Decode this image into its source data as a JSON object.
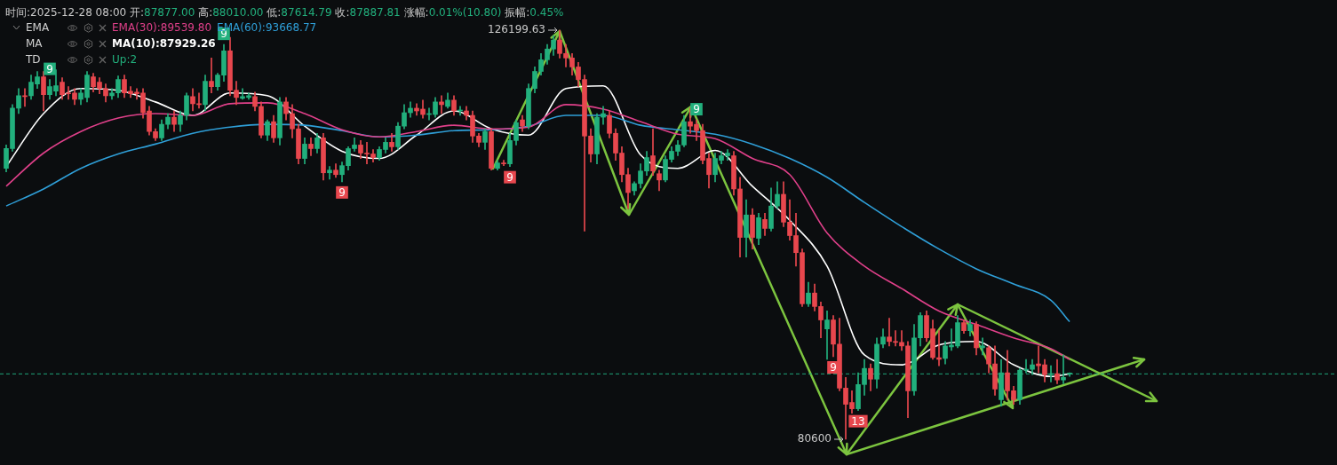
{
  "chart_data": {
    "type": "candlestick",
    "title": "时间:2025-12-28 08:00 开:87877.00 高:88010.00 低:87614.79 收:87887.81 涨幅:0.01%(10.80) 振幅:0.45%",
    "categories": [
      null,
      null,
      null,
      null,
      null,
      null,
      null,
      null,
      null,
      null,
      null,
      null,
      null,
      null,
      null,
      null,
      null,
      null,
      null,
      null,
      null,
      null,
      null,
      null,
      null,
      null,
      null,
      null,
      null,
      null,
      null,
      null,
      null,
      null,
      null,
      null,
      null,
      null,
      null,
      null,
      null,
      null,
      null,
      null,
      null,
      null,
      null,
      null,
      null,
      null,
      null,
      null,
      null,
      null,
      null,
      null,
      null,
      null,
      null,
      null,
      null,
      null,
      null,
      null,
      null,
      null,
      null,
      null,
      null,
      null,
      null,
      null,
      null,
      null,
      null,
      null,
      null,
      null,
      null,
      null,
      null,
      null,
      null,
      null,
      null,
      null,
      null,
      null,
      null,
      null,
      null,
      null,
      null,
      null,
      null,
      null,
      null,
      null,
      null,
      null,
      null,
      null,
      null,
      null,
      null,
      null,
      null,
      null,
      null,
      null,
      null,
      null,
      null,
      null,
      null,
      null,
      null,
      null,
      null,
      null,
      null,
      null,
      null,
      null,
      null,
      null,
      null,
      null,
      null,
      null,
      null,
      null,
      null,
      null,
      null,
      null,
      null,
      null,
      null,
      null,
      null,
      null,
      null,
      null,
      null,
      null,
      null,
      null,
      null,
      null,
      null,
      null,
      null,
      null,
      null,
      null,
      null,
      null,
      null,
      null,
      null,
      null,
      null,
      null,
      null,
      null,
      null,
      null,
      null,
      null,
      null,
      null
    ],
    "ohlc": [
      [
        110800,
        113400,
        110400,
        113000
      ],
      [
        113000,
        117900,
        112700,
        117500
      ],
      [
        117500,
        119700,
        116900,
        118900
      ],
      [
        118900,
        119700,
        117700,
        118800
      ],
      [
        118900,
        121200,
        118500,
        120400
      ],
      [
        120200,
        121600,
        119700,
        121000
      ],
      [
        121000,
        121600,
        117200,
        119000
      ],
      [
        119000,
        120700,
        118500,
        119900
      ],
      [
        119400,
        121800,
        118900,
        120000
      ],
      [
        120400,
        120900,
        118500,
        119000
      ],
      [
        119200,
        119900,
        118500,
        119100
      ],
      [
        119200,
        119700,
        117900,
        118500
      ],
      [
        118500,
        119700,
        117900,
        119200
      ],
      [
        118700,
        121600,
        118200,
        121200
      ],
      [
        121000,
        121400,
        119300,
        119900
      ],
      [
        120400,
        120900,
        119100,
        119700
      ],
      [
        119700,
        120200,
        118200,
        118900
      ],
      [
        118900,
        119700,
        118500,
        119200
      ],
      [
        119200,
        121100,
        118700,
        120700
      ],
      [
        120700,
        121200,
        118700,
        119200
      ],
      [
        119400,
        119900,
        118700,
        119100
      ],
      [
        119300,
        119700,
        118500,
        119100
      ],
      [
        119200,
        119700,
        116400,
        117000
      ],
      [
        117200,
        117700,
        114500,
        114900
      ],
      [
        114900,
        115200,
        113900,
        114200
      ],
      [
        114200,
        116200,
        113900,
        115700
      ],
      [
        115700,
        116900,
        115200,
        116500
      ],
      [
        116500,
        117200,
        114900,
        115700
      ],
      [
        115700,
        117200,
        114900,
        116700
      ],
      [
        116700,
        119200,
        116200,
        118900
      ],
      [
        118800,
        119700,
        117200,
        118000
      ],
      [
        118000,
        119200,
        117500,
        117900
      ],
      [
        117900,
        121200,
        117200,
        120500
      ],
      [
        120500,
        123100,
        119200,
        119900
      ],
      [
        119900,
        121400,
        119500,
        121200
      ],
      [
        121200,
        124600,
        120500,
        123900
      ],
      [
        123900,
        125400,
        118900,
        119500
      ],
      [
        119500,
        120500,
        117900,
        118700
      ],
      [
        118600,
        119700,
        118500,
        118800
      ],
      [
        118700,
        119200,
        118500,
        118900
      ],
      [
        118800,
        119300,
        117200,
        117700
      ],
      [
        117700,
        118200,
        114200,
        114500
      ],
      [
        114500,
        116200,
        113900,
        116000
      ],
      [
        116000,
        116700,
        113700,
        114200
      ],
      [
        114200,
        118700,
        113400,
        118200
      ],
      [
        118200,
        118700,
        116200,
        116900
      ],
      [
        116900,
        117900,
        114200,
        115200
      ],
      [
        115200,
        115700,
        111300,
        111900
      ],
      [
        111900,
        114200,
        111300,
        113500
      ],
      [
        113500,
        114200,
        112200,
        113000
      ],
      [
        113000,
        114700,
        112500,
        114200
      ],
      [
        114200,
        114700,
        109500,
        110300
      ],
      [
        110300,
        111000,
        109600,
        110600
      ],
      [
        110600,
        111300,
        109800,
        110100
      ],
      [
        110100,
        111500,
        109300,
        111100
      ],
      [
        111100,
        113200,
        110600,
        113000
      ],
      [
        113000,
        114200,
        112700,
        113400
      ],
      [
        113400,
        113900,
        111900,
        112500
      ],
      [
        112500,
        113700,
        111300,
        112400
      ],
      [
        112400,
        112900,
        111500,
        112000
      ],
      [
        112000,
        113200,
        111700,
        112900
      ],
      [
        112900,
        114200,
        112500,
        113700
      ],
      [
        113700,
        114700,
        112700,
        113200
      ],
      [
        113200,
        115900,
        112900,
        115500
      ],
      [
        115500,
        117900,
        115200,
        117000
      ],
      [
        117000,
        118200,
        116500,
        117500
      ],
      [
        117500,
        118000,
        116700,
        117200
      ],
      [
        117400,
        118400,
        116400,
        116800
      ],
      [
        116800,
        117500,
        116200,
        116900
      ],
      [
        116800,
        118700,
        116500,
        118200
      ],
      [
        118200,
        118900,
        116900,
        117900
      ],
      [
        117700,
        119200,
        117500,
        118400
      ],
      [
        118400,
        118900,
        116700,
        117200
      ],
      [
        117200,
        117700,
        116700,
        117300
      ],
      [
        117200,
        117700,
        116200,
        116700
      ],
      [
        116700,
        117200,
        113700,
        114400
      ],
      [
        114400,
        114700,
        113200,
        113700
      ],
      [
        113700,
        115200,
        112900,
        114900
      ],
      [
        114900,
        115200,
        110600,
        110800
      ],
      [
        110800,
        111700,
        110600,
        111400
      ],
      [
        111400,
        111700,
        111100,
        111300
      ],
      [
        111300,
        114700,
        111000,
        113900
      ],
      [
        113900,
        116200,
        113400,
        115900
      ],
      [
        116200,
        116700,
        114900,
        115500
      ],
      [
        115500,
        120200,
        115200,
        119700
      ],
      [
        119700,
        122100,
        119200,
        121600
      ],
      [
        121600,
        123600,
        121200,
        122900
      ],
      [
        122900,
        124600,
        122400,
        124100
      ],
      [
        124100,
        125600,
        123400,
        125100
      ],
      [
        125100,
        126199.63,
        123100,
        123600
      ],
      [
        123600,
        124600,
        122100,
        123100
      ],
      [
        123100,
        123600,
        121200,
        122100
      ],
      [
        122100,
        122600,
        119900,
        120700
      ],
      [
        120700,
        121200,
        103800,
        114400
      ],
      [
        114400,
        115200,
        111500,
        112400
      ],
      [
        112400,
        116900,
        111300,
        116500
      ],
      [
        116500,
        117700,
        115700,
        116900
      ],
      [
        116700,
        117200,
        114200,
        114700
      ],
      [
        114700,
        115200,
        111700,
        112500
      ],
      [
        112500,
        113200,
        109300,
        110100
      ],
      [
        110100,
        110800,
        106300,
        108100
      ],
      [
        108300,
        109300,
        107800,
        109100
      ],
      [
        109100,
        111300,
        108600,
        110500
      ],
      [
        110500,
        112700,
        110000,
        112000
      ],
      [
        112200,
        115200,
        110000,
        110500
      ],
      [
        110200,
        110600,
        108300,
        109500
      ],
      [
        109500,
        112200,
        109300,
        111800
      ],
      [
        111800,
        113200,
        111500,
        112700
      ],
      [
        112700,
        113900,
        112200,
        113400
      ],
      [
        113400,
        116700,
        113200,
        116000
      ],
      [
        116000,
        117500,
        114700,
        115500
      ],
      [
        115700,
        116200,
        113900,
        115000
      ],
      [
        115000,
        115700,
        111300,
        111700
      ],
      [
        111900,
        112500,
        108600,
        110100
      ],
      [
        110100,
        112500,
        109300,
        111900
      ],
      [
        111700,
        112700,
        111300,
        112200
      ],
      [
        112200,
        112900,
        111700,
        112500
      ],
      [
        112200,
        112700,
        107800,
        108500
      ],
      [
        108500,
        109800,
        100900,
        103100
      ],
      [
        103100,
        107300,
        100900,
        105600
      ],
      [
        105600,
        106300,
        101800,
        103100
      ],
      [
        103000,
        105800,
        102300,
        105300
      ],
      [
        105100,
        105800,
        103300,
        104100
      ],
      [
        104100,
        108600,
        103800,
        106600
      ],
      [
        106600,
        109300,
        106300,
        107900
      ],
      [
        107900,
        109300,
        104300,
        104800
      ],
      [
        104800,
        107300,
        102800,
        103300
      ],
      [
        103300,
        105800,
        99900,
        101400
      ],
      [
        101400,
        101800,
        95400,
        95700
      ],
      [
        95700,
        98100,
        95400,
        96900
      ],
      [
        96900,
        97900,
        94900,
        95400
      ],
      [
        95400,
        95900,
        91900,
        93900
      ],
      [
        92900,
        94900,
        89500,
        93900
      ],
      [
        93900,
        94400,
        89800,
        91200
      ],
      [
        91200,
        94100,
        86000,
        86300
      ],
      [
        86300,
        87500,
        80600,
        84500
      ],
      [
        84700,
        86000,
        83500,
        84000
      ],
      [
        84000,
        88000,
        83800,
        86700
      ],
      [
        86700,
        89500,
        85500,
        88500
      ],
      [
        88500,
        89000,
        86000,
        87300
      ],
      [
        87300,
        91900,
        86300,
        91200
      ],
      [
        91200,
        92900,
        90800,
        92000
      ],
      [
        92000,
        94100,
        91000,
        91500
      ],
      [
        91500,
        92700,
        91000,
        91400
      ],
      [
        91400,
        92700,
        90500,
        91000
      ],
      [
        91000,
        91500,
        83000,
        86000
      ],
      [
        86000,
        93400,
        85500,
        91900
      ],
      [
        91900,
        94700,
        91000,
        94400
      ],
      [
        94400,
        94900,
        91500,
        91900
      ],
      [
        92900,
        93900,
        89500,
        89700
      ],
      [
        89700,
        92700,
        88800,
        89500
      ],
      [
        89600,
        91500,
        89000,
        91000
      ],
      [
        90900,
        92900,
        90500,
        91100
      ],
      [
        91000,
        94400,
        90800,
        93600
      ],
      [
        93600,
        93900,
        92400,
        92700
      ],
      [
        92700,
        93900,
        92100,
        93400
      ],
      [
        93400,
        93700,
        90000,
        90800
      ],
      [
        90800,
        91900,
        90000,
        91000
      ],
      [
        90800,
        91000,
        88000,
        89000
      ],
      [
        89000,
        91000,
        85500,
        86200
      ],
      [
        85000,
        89500,
        84300,
        88000
      ],
      [
        88000,
        90500,
        85000,
        86000
      ],
      [
        86000,
        86500,
        84500,
        85000
      ],
      [
        85000,
        88500,
        84500,
        88300
      ],
      [
        88300,
        89500,
        88000,
        88400
      ],
      [
        88400,
        89500,
        87800,
        88900
      ],
      [
        89000,
        91000,
        88000,
        88800
      ],
      [
        88900,
        89500,
        87000,
        87800
      ],
      [
        87800,
        88800,
        87000,
        87900
      ],
      [
        87900,
        89500,
        86800,
        87200
      ],
      [
        87200,
        90000,
        86800,
        87500
      ],
      [
        87877,
        88010,
        87614.79,
        87887.81
      ]
    ],
    "series": [
      {
        "type": "line",
        "name": "EMA(30):89539.80",
        "color": "#e0408a",
        "values": [
          108800,
          null,
          null,
          null,
          null,
          null,
          112500,
          null,
          null,
          null,
          null,
          null,
          114900,
          null,
          null,
          null,
          null,
          null,
          116400,
          null,
          null,
          null,
          null,
          null,
          116900,
          null,
          null,
          null,
          null,
          null,
          116700,
          null,
          null,
          null,
          null,
          null,
          118000,
          null,
          null,
          null,
          null,
          null,
          118100,
          null,
          null,
          null,
          null,
          null,
          116900,
          null,
          null,
          null,
          null,
          null,
          115100,
          null,
          null,
          null,
          null,
          null,
          114300,
          null,
          null,
          null,
          null,
          null,
          114900,
          null,
          null,
          null,
          null,
          null,
          115600,
          null,
          null,
          null,
          null,
          null,
          115200,
          null,
          null,
          null,
          null,
          null,
          115400,
          null,
          null,
          null,
          null,
          null,
          117900,
          null,
          null,
          null,
          null,
          null,
          117400,
          null,
          null,
          null,
          null,
          null,
          116000,
          null,
          null,
          null,
          null,
          null,
          114600,
          null,
          null,
          null,
          null,
          null,
          114100,
          null,
          null,
          null,
          null,
          null,
          111900,
          null,
          null,
          null,
          null,
          null,
          110100,
          null,
          null,
          null,
          null,
          null,
          103600,
          null,
          null,
          null,
          null,
          null,
          99900,
          null,
          null,
          null,
          null,
          null,
          97400,
          null,
          null,
          null,
          null,
          null,
          94900,
          null,
          null,
          null,
          null,
          null,
          93400,
          null,
          null,
          null,
          null,
          null,
          91900,
          null,
          null,
          null,
          null,
          null,
          90700,
          null,
          null,
          89500
        ]
      },
      {
        "type": "line",
        "name": "EMA(60):93668.77",
        "color": "#2f9fd8",
        "values": [
          106600,
          null,
          null,
          null,
          null,
          null,
          108500,
          null,
          null,
          null,
          null,
          null,
          110800,
          null,
          null,
          null,
          null,
          null,
          112400,
          null,
          null,
          null,
          null,
          null,
          113500,
          null,
          null,
          null,
          null,
          null,
          114700,
          null,
          null,
          null,
          null,
          null,
          115400,
          null,
          null,
          null,
          null,
          null,
          115700,
          null,
          null,
          null,
          null,
          null,
          115600,
          null,
          null,
          null,
          null,
          null,
          115000,
          null,
          null,
          null,
          null,
          null,
          114300,
          null,
          null,
          null,
          null,
          null,
          114500,
          null,
          null,
          null,
          null,
          null,
          115000,
          null,
          null,
          null,
          null,
          null,
          115100,
          null,
          null,
          null,
          null,
          null,
          115500,
          null,
          null,
          null,
          null,
          null,
          116700,
          null,
          null,
          null,
          null,
          null,
          116700,
          null,
          null,
          null,
          null,
          null,
          115600,
          null,
          null,
          null,
          null,
          null,
          115100,
          null,
          null,
          null,
          null,
          null,
          114600,
          null,
          null,
          null,
          null,
          null,
          113500,
          null,
          null,
          null,
          null,
          null,
          111900,
          null,
          null,
          null,
          null,
          null,
          109800,
          null,
          null,
          null,
          null,
          null,
          107000,
          null,
          null,
          null,
          null,
          null,
          104300,
          null,
          null,
          null,
          null,
          null,
          101800,
          null,
          null,
          null,
          null,
          null,
          99600,
          null,
          null,
          null,
          null,
          null,
          97900,
          null,
          null,
          null,
          null,
          null,
          96100,
          null,
          null,
          93700
        ]
      },
      {
        "type": "line",
        "name": "MA(10):87929.26",
        "color": "#ffffff",
        "values": [
          111000,
          null,
          null,
          null,
          null,
          null,
          116900,
          null,
          null,
          null,
          null,
          null,
          119700,
          null,
          null,
          null,
          null,
          null,
          119500,
          null,
          null,
          null,
          null,
          null,
          118200,
          null,
          null,
          null,
          null,
          null,
          116700,
          null,
          null,
          null,
          null,
          null,
          119200,
          null,
          null,
          null,
          null,
          null,
          118900,
          null,
          null,
          null,
          null,
          null,
          115500,
          null,
          null,
          null,
          null,
          null,
          112700,
          null,
          null,
          null,
          null,
          null,
          111900,
          null,
          null,
          null,
          null,
          null,
          114500,
          null,
          null,
          null,
          null,
          null,
          117200,
          null,
          null,
          null,
          null,
          null,
          115200,
          null,
          null,
          null,
          null,
          null,
          114500,
          null,
          null,
          null,
          null,
          null,
          119700,
          null,
          null,
          null,
          null,
          null,
          120000,
          null,
          null,
          null,
          null,
          null,
          112300,
          null,
          null,
          null,
          null,
          null,
          110800,
          null,
          null,
          null,
          null,
          null,
          112800,
          null,
          null,
          null,
          null,
          null,
          108800,
          null,
          null,
          null,
          null,
          null,
          105000,
          null,
          null,
          null,
          null,
          null,
          99900,
          null,
          null,
          null,
          null,
          null,
          90000,
          null,
          null,
          null,
          null,
          null,
          88900,
          null,
          null,
          null,
          null,
          null,
          91100,
          null,
          null,
          null,
          null,
          null,
          91500,
          null,
          null,
          null,
          null,
          null,
          88900,
          null,
          null,
          null,
          null,
          null,
          87600,
          null,
          null,
          87900
        ]
      }
    ],
    "legend": "top left",
    "marker": "none",
    "ref_lines": [
      {
        "axis": "y",
        "value": 87887.81,
        "color": "#1fa67a",
        "line_style": "dashed"
      }
    ],
    "annotations": [
      "EMA",
      "MA",
      "TD",
      "Up:2",
      "126199.63",
      "80600",
      "9",
      "9",
      "9",
      "9",
      "9",
      "9",
      "13"
    ]
  }
}
